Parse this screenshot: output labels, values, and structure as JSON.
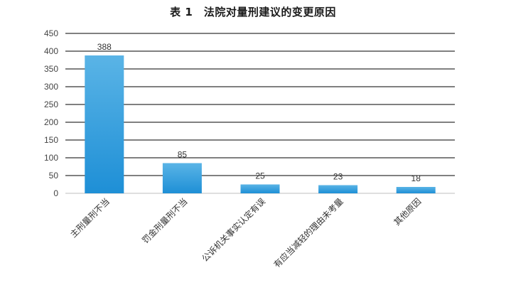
{
  "chart_data": {
    "type": "bar",
    "title": "表 1　法院对量刑建议的变更原因",
    "categories": [
      "主刑量刑不当",
      "罚金刑量刑不当",
      "公诉机关事实认定有误",
      "有应当减轻的理由未考量",
      "其他原因"
    ],
    "values": [
      388,
      85,
      25,
      23,
      18
    ],
    "data_labels": [
      "388",
      "85",
      "25",
      "23",
      "18"
    ],
    "ylim": [
      0,
      450
    ],
    "yticks": [
      0,
      50,
      100,
      150,
      200,
      250,
      300,
      350,
      400,
      450
    ],
    "grid": true,
    "legend": "none",
    "xlabel": "",
    "ylabel": "",
    "colors": {
      "bar_top": "#5ab4e6",
      "bar_bottom": "#1e8fd6",
      "grid": "#000000"
    }
  }
}
